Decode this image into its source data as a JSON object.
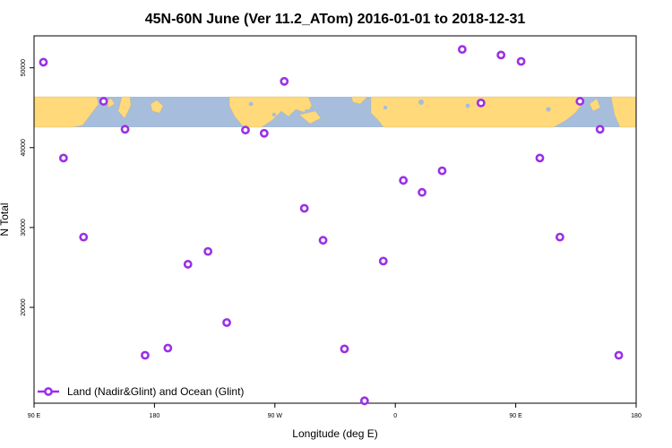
{
  "chart_data": {
    "type": "scatter",
    "title": "45N-60N June (Ver 11.2_ATom)   2016-01-01 to 2018-12-31",
    "xlabel": "Longitude (deg E)",
    "ylabel": "N Total",
    "x_ticks": [
      {
        "value": 90,
        "label": "90 E"
      },
      {
        "value": 180,
        "label": "180"
      },
      {
        "value": 270,
        "label": "90 W"
      },
      {
        "value": 360,
        "label": "0"
      },
      {
        "value": 450,
        "label": "90 E"
      },
      {
        "value": 540,
        "label": "180"
      }
    ],
    "y_ticks": [
      {
        "value": 20000,
        "label": "20000"
      },
      {
        "value": 30000,
        "label": "30000"
      },
      {
        "value": 40000,
        "label": "40000"
      },
      {
        "value": 50000,
        "label": "50000"
      }
    ],
    "xlim": [
      90,
      540
    ],
    "ylim": [
      8000,
      54000
    ],
    "grid": false,
    "legend_position": "bottom-left",
    "series": [
      {
        "name": "Land (Nadir&Glint) and Ocean (Glint)",
        "color": "#9b30e6",
        "marker": "open-circle",
        "points": [
          {
            "x": 97,
            "y": 50700
          },
          {
            "x": 112,
            "y": 38700
          },
          {
            "x": 127,
            "y": 28800
          },
          {
            "x": 142,
            "y": 45800
          },
          {
            "x": 158,
            "y": 42300
          },
          {
            "x": 173,
            "y": 14000
          },
          {
            "x": 190,
            "y": 14900
          },
          {
            "x": 205,
            "y": 25400
          },
          {
            "x": 220,
            "y": 27000
          },
          {
            "x": 234,
            "y": 18100
          },
          {
            "x": 248,
            "y": 42200
          },
          {
            "x": 262,
            "y": 41800
          },
          {
            "x": 277,
            "y": 48300
          },
          {
            "x": 292,
            "y": 32400
          },
          {
            "x": 306,
            "y": 28400
          },
          {
            "x": 322,
            "y": 14800
          },
          {
            "x": 337,
            "y": 8300
          },
          {
            "x": 351,
            "y": 25800
          },
          {
            "x": 366,
            "y": 35900
          },
          {
            "x": 380,
            "y": 34400
          },
          {
            "x": 395,
            "y": 37100
          },
          {
            "x": 410,
            "y": 52300
          },
          {
            "x": 424,
            "y": 45600
          },
          {
            "x": 439,
            "y": 51600
          },
          {
            "x": 454,
            "y": 50800
          },
          {
            "x": 468,
            "y": 38700
          },
          {
            "x": 483,
            "y": 28800
          },
          {
            "x": 498,
            "y": 45800
          },
          {
            "x": 513,
            "y": 42300
          },
          {
            "x": 527,
            "y": 14000
          }
        ]
      }
    ],
    "map_strip": {
      "type": "world-map-band",
      "ocean_color": "#a6bddb",
      "land_color": "#ffd97a"
    }
  }
}
